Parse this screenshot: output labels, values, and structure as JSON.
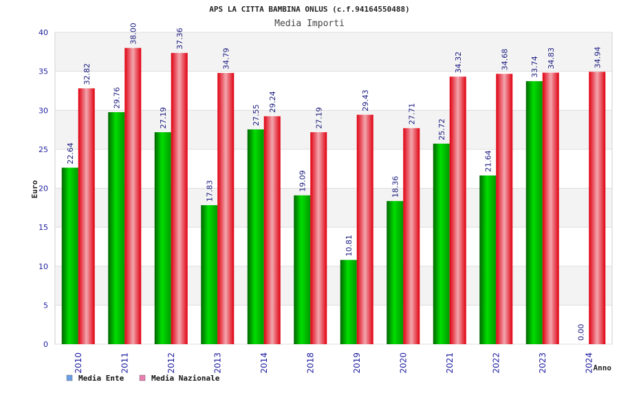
{
  "chart_data": {
    "type": "bar",
    "title": "APS LA CITTA BAMBINA ONLUS (c.f.94164550488)",
    "subtitle": "Media Importi",
    "xlabel": "Anno",
    "ylabel": "Euro",
    "ylim": [
      0,
      40
    ],
    "yticks": [
      0,
      5,
      10,
      15,
      20,
      25,
      30,
      35,
      40
    ],
    "grid": true,
    "legend_position": "bottom-left",
    "categories": [
      "2010",
      "2011",
      "2012",
      "2013",
      "2014",
      "2018",
      "2019",
      "2020",
      "2021",
      "2022",
      "2023",
      "2024"
    ],
    "series": [
      {
        "name": "Media Ente",
        "color": "#00aa00",
        "legend_color": "#6a9fe6",
        "values": [
          22.64,
          29.76,
          27.19,
          17.83,
          27.55,
          19.09,
          10.81,
          18.36,
          25.72,
          21.64,
          33.74,
          0.0
        ],
        "labels": [
          "22.64",
          "29.76",
          "27.19",
          "17.83",
          "27.55",
          "19.09",
          "10.81",
          "18.36",
          "25.72",
          "21.64",
          "33.74",
          "0.00"
        ]
      },
      {
        "name": "Media Nazionale",
        "color": "#ee1122",
        "legend_color": "#e87fb0",
        "values": [
          32.82,
          38.0,
          37.36,
          34.79,
          29.24,
          27.19,
          29.43,
          27.71,
          34.32,
          34.68,
          34.83,
          34.94
        ],
        "labels": [
          "32.82",
          "38.00",
          "37.36",
          "34.79",
          "29.24",
          "27.19",
          "29.43",
          "27.71",
          "34.32",
          "34.68",
          "34.83",
          "34.94"
        ]
      }
    ]
  }
}
